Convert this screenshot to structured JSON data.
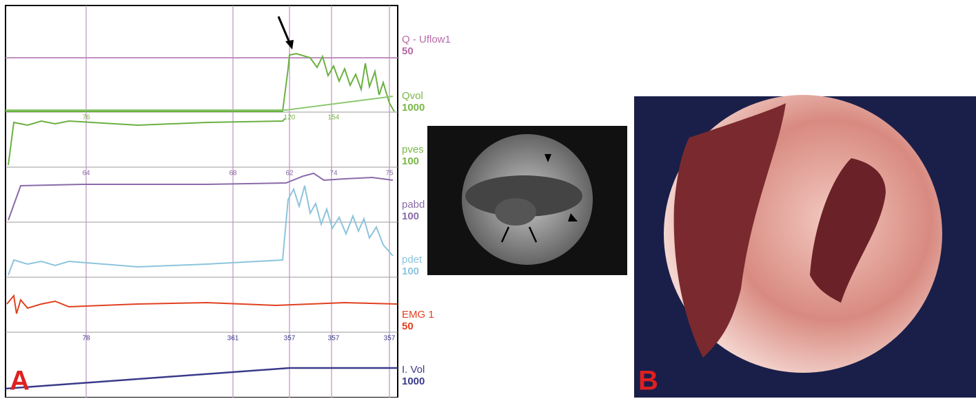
{
  "panel_a": {
    "label": "A",
    "channels": [
      {
        "name": "Q - Uflow1",
        "scale": "50",
        "color": "#b86aa8"
      },
      {
        "name": "Qvol",
        "scale": "1000",
        "color": "#7ab648"
      },
      {
        "name": "pves",
        "scale": "100",
        "color": "#7ab648"
      },
      {
        "name": "pabd",
        "scale": "100",
        "color": "#8a6aa8"
      },
      {
        "name": "pdet",
        "scale": "100",
        "color": "#8cc4dc"
      },
      {
        "name": "EMG 1",
        "scale": "50",
        "color": "#e04020"
      },
      {
        "name": "I. Vol",
        "scale": "1000",
        "color": "#3a3a8a"
      }
    ],
    "tick_rows": [
      [
        "76",
        "120",
        "154"
      ],
      [
        "64",
        "68",
        "62",
        "74",
        "75"
      ],
      [
        "78",
        "361",
        "357",
        "357",
        "357"
      ]
    ]
  },
  "panel_b": {
    "label": "B"
  }
}
